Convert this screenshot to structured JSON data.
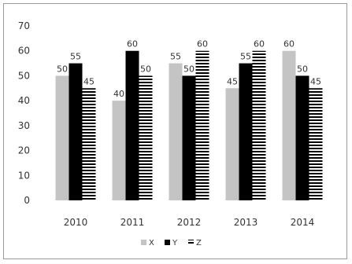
{
  "chart_data": {
    "type": "bar",
    "categories": [
      "2010",
      "2011",
      "2012",
      "2013",
      "2014"
    ],
    "series": [
      {
        "name": "X",
        "values": [
          50,
          40,
          55,
          45,
          60
        ],
        "color": "#c4c4c4",
        "pattern": "solid"
      },
      {
        "name": "Y",
        "values": [
          55,
          60,
          50,
          55,
          50
        ],
        "color": "#000000",
        "pattern": "solid"
      },
      {
        "name": "Z",
        "values": [
          45,
          50,
          60,
          60,
          45
        ],
        "color": "#000000",
        "pattern": "horizontal-stripes"
      }
    ],
    "title": "",
    "xlabel": "",
    "ylabel": "",
    "ylim": [
      0,
      70
    ],
    "yticks": [
      0,
      10,
      20,
      30,
      40,
      50,
      60,
      70
    ],
    "grid": false,
    "legend": "bottom-center",
    "data_labels": true
  }
}
